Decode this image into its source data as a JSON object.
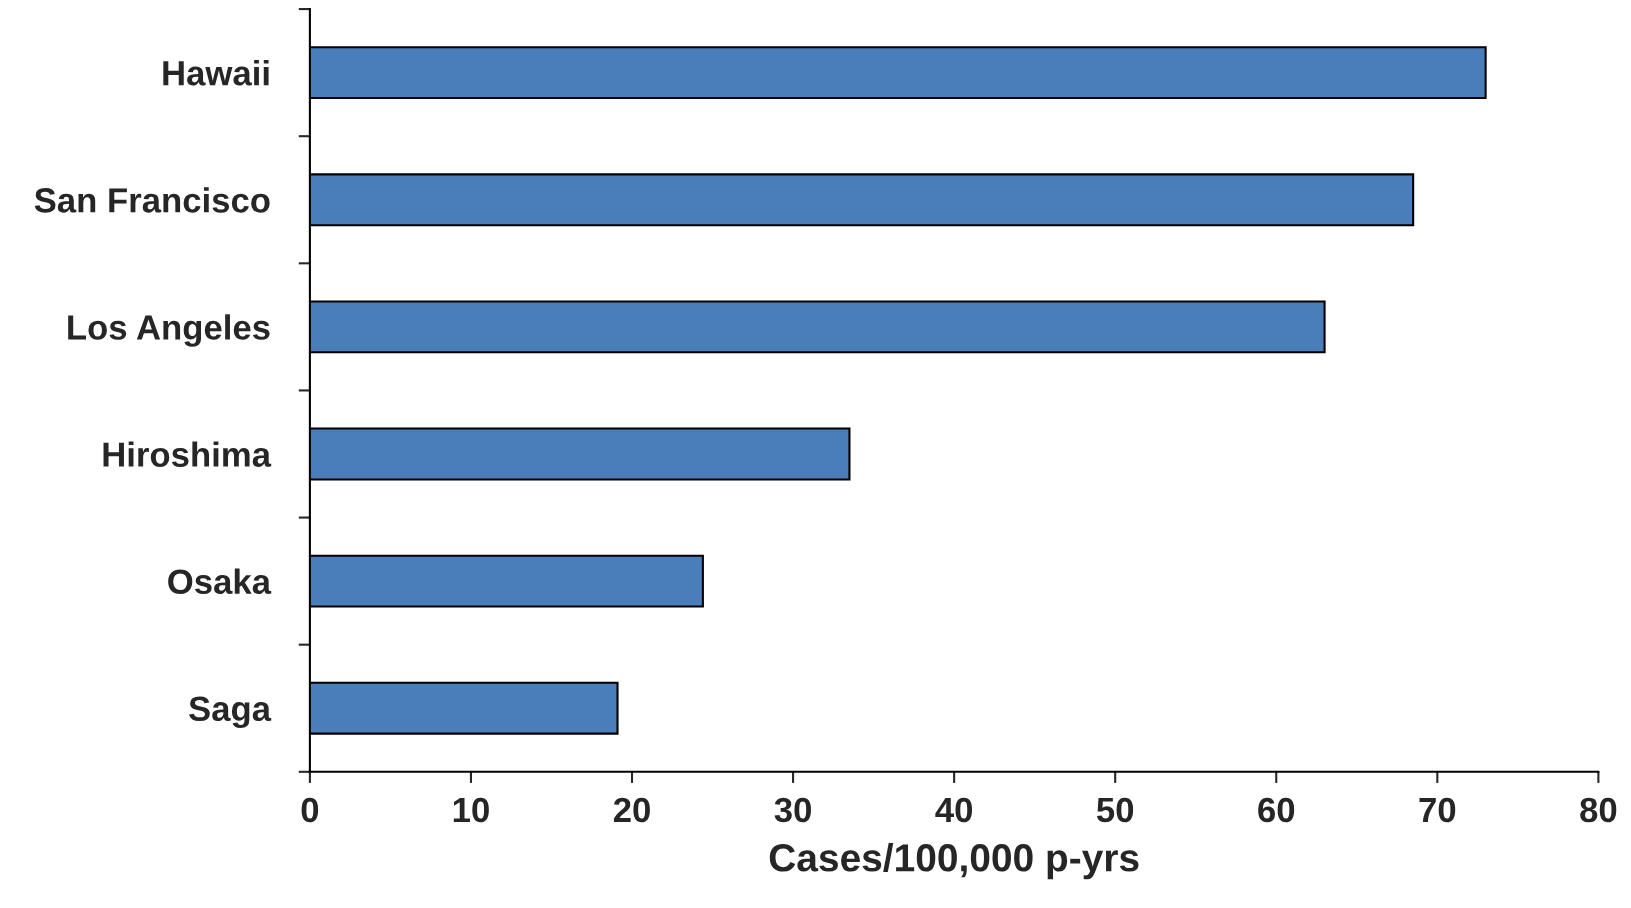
{
  "chart_data": {
    "type": "bar",
    "orientation": "horizontal",
    "xlabel": "Cases/100,000 p-yrs",
    "categories": [
      "Hawaii",
      "San Francisco",
      "Los Angeles",
      "Hiroshima",
      "Osaka",
      "Saga"
    ],
    "values": [
      73.0,
      68.5,
      63.0,
      33.5,
      24.4,
      19.1
    ],
    "color": "#4a7ebb",
    "xlim": [
      0,
      80
    ],
    "xticks": [
      0,
      10,
      20,
      30,
      40,
      50,
      60,
      70,
      80
    ],
    "grid": false,
    "legend": false
  }
}
